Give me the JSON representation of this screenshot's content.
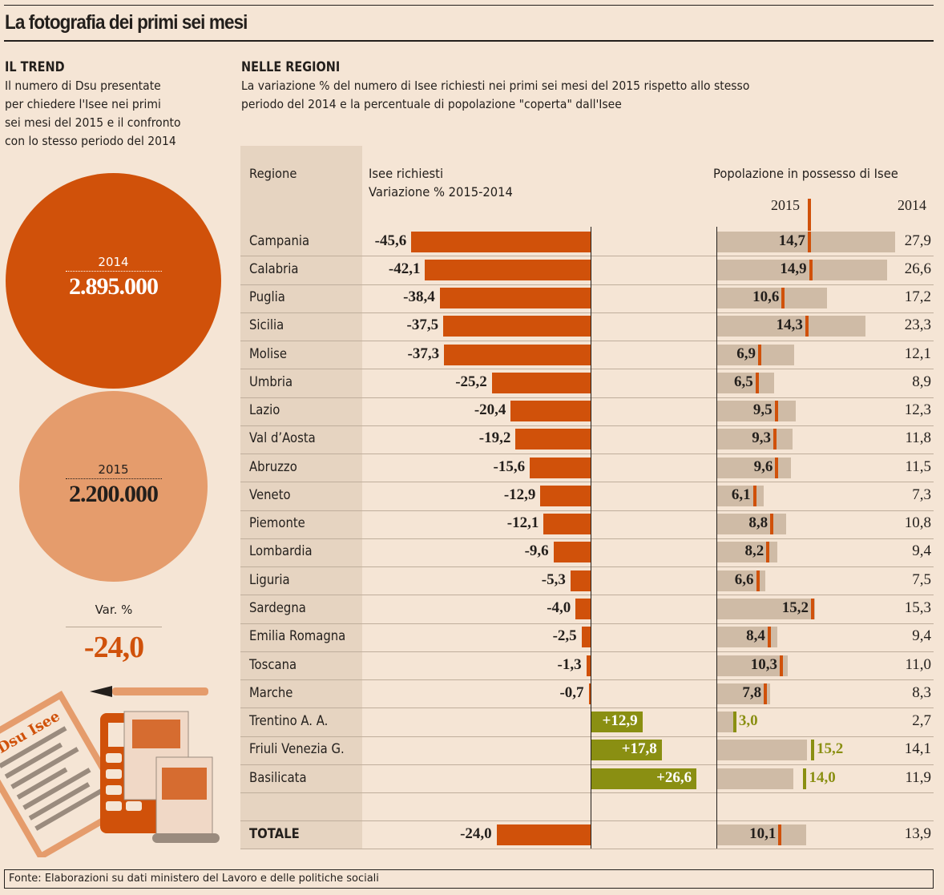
{
  "title": "La fotografia dei primi sei mesi",
  "trend": {
    "heading": "IL TREND",
    "text": [
      "Il numero di Dsu presentate",
      "per chiedere l'Isee nei primi",
      "sei mesi del 2015 e il confronto",
      "con lo stesso periodo del 2014"
    ],
    "y2014": "2014",
    "v2014": "2.895.000",
    "y2015": "2015",
    "v2015": "2.200.000",
    "var_label": "Var. %",
    "var_value": "-24,0",
    "illustration_text": "Dsu Isee"
  },
  "regions_section": {
    "heading": "NELLE REGIONI",
    "text": [
      "La variazione % del numero di Isee richiesti nei primi sei mesi del 2015 rispetto allo stesso",
      "periodo del 2014  e la percentuale di popolazione \"coperta\" dall'Isee"
    ]
  },
  "colors": {
    "background": "#f5e5d5",
    "negative": "#d0510a",
    "positive": "#8a8f12",
    "bar2014": "#cfbba6",
    "circle2014": "#d0510a",
    "circle2015": "#e59c6c"
  },
  "chart_data": {
    "type": "table",
    "columns": {
      "region": "Regione",
      "change_line1": "Isee richiesti",
      "change_line2": "Variazione % 2015-2014",
      "pop": "Popolazione in possesso di Isee",
      "pop2015": "2015",
      "pop2014": "2014"
    },
    "rows": [
      {
        "region": "Campania",
        "change": "-45,6",
        "pop2015": "14,7",
        "pop2014": "27,9"
      },
      {
        "region": "Calabria",
        "change": "-42,1",
        "pop2015": "14,9",
        "pop2014": "26,6"
      },
      {
        "region": "Puglia",
        "change": "-38,4",
        "pop2015": "10,6",
        "pop2014": "17,2"
      },
      {
        "region": "Sicilia",
        "change": "-37,5",
        "pop2015": "14,3",
        "pop2014": "23,3"
      },
      {
        "region": "Molise",
        "change": "-37,3",
        "pop2015": "6,9",
        "pop2014": "12,1"
      },
      {
        "region": "Umbria",
        "change": "-25,2",
        "pop2015": "6,5",
        "pop2014": "8,9"
      },
      {
        "region": "Lazio",
        "change": "-20,4",
        "pop2015": "9,5",
        "pop2014": "12,3"
      },
      {
        "region": "Val d’Aosta",
        "change": "-19,2",
        "pop2015": "9,3",
        "pop2014": "11,8"
      },
      {
        "region": "Abruzzo",
        "change": "-15,6",
        "pop2015": "9,6",
        "pop2014": "11,5"
      },
      {
        "region": "Veneto",
        "change": "-12,9",
        "pop2015": "6,1",
        "pop2014": "7,3"
      },
      {
        "region": "Piemonte",
        "change": "-12,1",
        "pop2015": "8,8",
        "pop2014": "10,8"
      },
      {
        "region": "Lombardia",
        "change": "-9,6",
        "pop2015": "8,2",
        "pop2014": "9,4"
      },
      {
        "region": "Liguria",
        "change": "-5,3",
        "pop2015": "6,6",
        "pop2014": "7,5"
      },
      {
        "region": "Sardegna",
        "change": "-4,0",
        "pop2015": "15,2",
        "pop2014": "15,3"
      },
      {
        "region": "Emilia Romagna",
        "change": "-2,5",
        "pop2015": "8,4",
        "pop2014": "9,4"
      },
      {
        "region": "Toscana",
        "change": "-1,3",
        "pop2015": "10,3",
        "pop2014": "11,0"
      },
      {
        "region": "Marche",
        "change": "-0,7",
        "pop2015": "7,8",
        "pop2014": "8,3"
      },
      {
        "region": "Trentino A. A.",
        "change": "+12,9",
        "pop2015": "3,0",
        "pop2014": "2,7"
      },
      {
        "region": "Friuli Venezia G.",
        "change": "+17,8",
        "pop2015": "15,2",
        "pop2014": "14,1"
      },
      {
        "region": "Basilicata",
        "change": "+26,6",
        "pop2015": "14,0",
        "pop2014": "11,9"
      }
    ],
    "total": {
      "region": "TOTALE",
      "change": "-24,0",
      "pop2015": "10,1",
      "pop2014": "13,9"
    }
  },
  "source": "Fonte: Elaborazioni su dati ministero del Lavoro e delle politiche sociali"
}
